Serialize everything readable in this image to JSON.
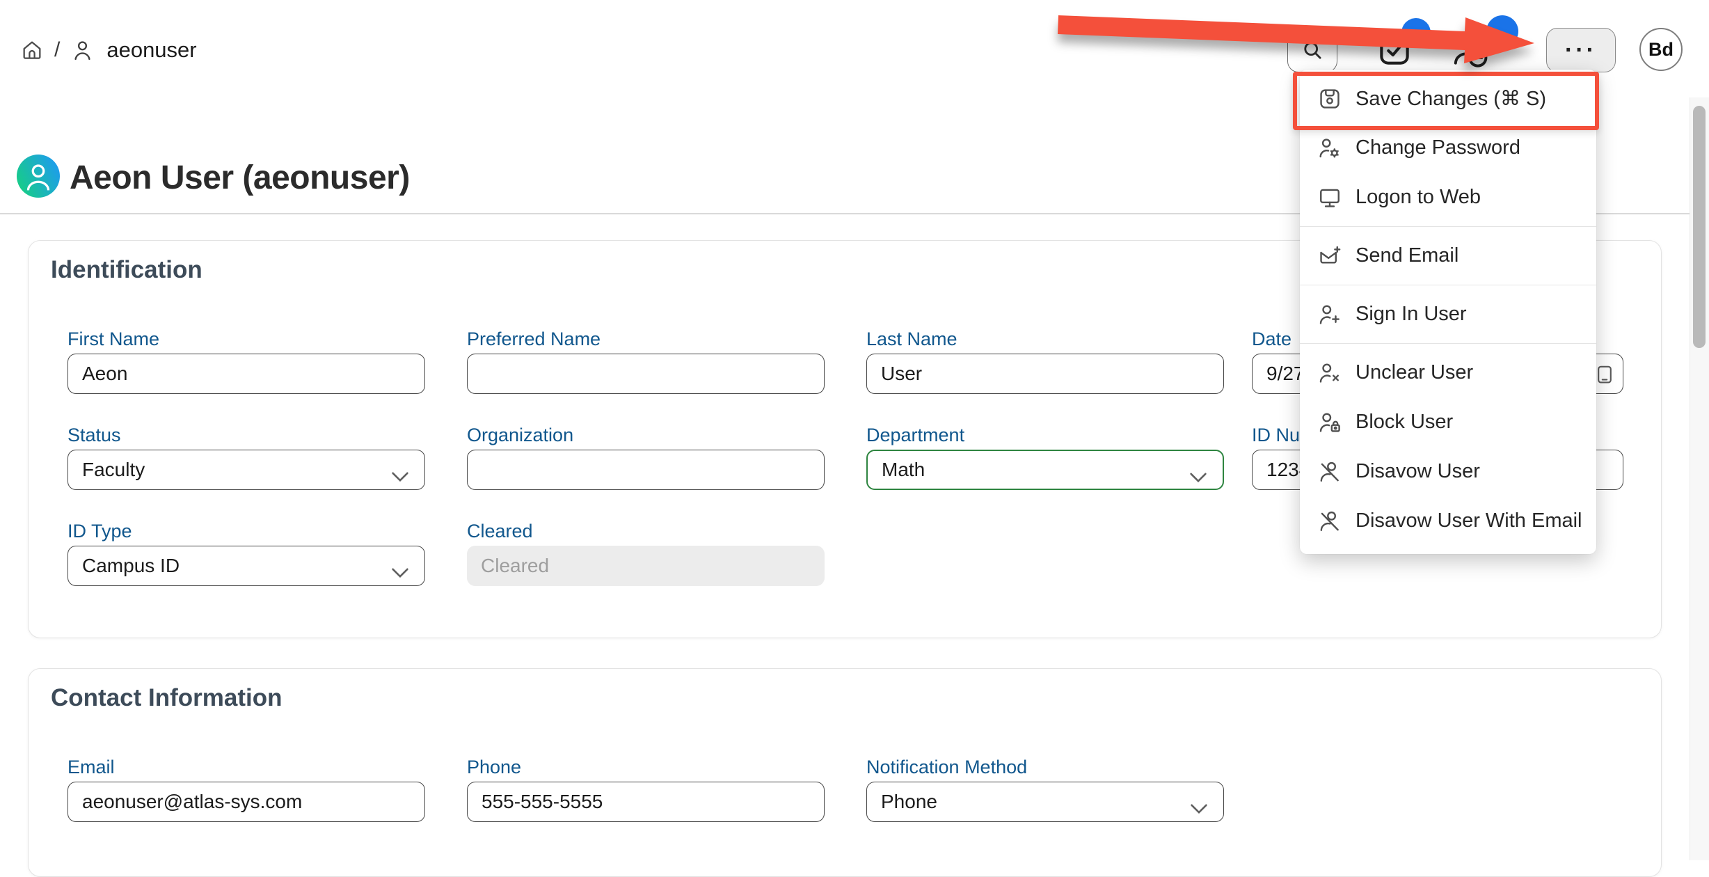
{
  "topbar": {
    "breadcrumb": {
      "separator": "/",
      "items": [
        {
          "icon": "home-icon",
          "label": ""
        },
        {
          "icon": "person-icon",
          "label": "aeonuser"
        }
      ]
    },
    "search_button": {
      "icon": "search-icon"
    },
    "status_buttons": [
      {
        "icon": "clipboard-check-icon",
        "has_badge": true
      },
      {
        "icon": "person-clock-icon",
        "has_badge": true
      }
    ],
    "more_button": {
      "label": "···"
    },
    "user_avatar": {
      "initials": "Bd"
    }
  },
  "page": {
    "title": "Aeon User (aeonuser)",
    "avatar_icon": "user-gradient-avatar-icon"
  },
  "action_menu": {
    "items": [
      {
        "label": "Save Changes (⌘ S)",
        "icon": "save-icon",
        "highlighted": true
      },
      {
        "label": "Change Password",
        "icon": "person-gear-icon"
      },
      {
        "label": "Logon to Web",
        "icon": "monitor-icon",
        "divider_after": true
      },
      {
        "label": "Send Email",
        "icon": "mail-plus-icon",
        "divider_after": true
      },
      {
        "label": "Sign In User",
        "icon": "person-plus-icon",
        "divider_after": true
      },
      {
        "label": "Unclear User",
        "icon": "person-x-icon"
      },
      {
        "label": "Block User",
        "icon": "person-lock-icon"
      },
      {
        "label": "Disavow User",
        "icon": "person-slash-icon"
      },
      {
        "label": "Disavow User With Email",
        "icon": "person-slash-icon"
      }
    ]
  },
  "sections": [
    {
      "title": "Identification",
      "fields": [
        {
          "label": "First Name",
          "value": "Aeon",
          "type": "text",
          "col": 0,
          "row": 0
        },
        {
          "label": "Preferred Name",
          "value": "",
          "type": "text",
          "col": 1,
          "row": 0
        },
        {
          "label": "Last Name",
          "value": "User",
          "type": "text",
          "col": 2,
          "row": 0
        },
        {
          "label": "Date",
          "value": "9/27",
          "type": "text",
          "col": 3,
          "row": 0,
          "trailing_icon": "calendar-icon"
        },
        {
          "label": "Status",
          "value": "Faculty",
          "type": "select",
          "col": 0,
          "row": 1
        },
        {
          "label": "Organization",
          "value": "",
          "type": "text",
          "col": 1,
          "row": 1
        },
        {
          "label": "Department",
          "value": "Math",
          "type": "select",
          "col": 2,
          "row": 1,
          "modified": true
        },
        {
          "label": "ID Number",
          "value": "1234",
          "type": "text",
          "col": 3,
          "row": 1
        },
        {
          "label": "ID Type",
          "value": "Campus ID",
          "type": "select",
          "col": 0,
          "row": 2
        },
        {
          "label": "Cleared",
          "value": "",
          "placeholder": "Cleared",
          "type": "disabled",
          "col": 1,
          "row": 2
        }
      ]
    },
    {
      "title": "Contact Information",
      "fields": [
        {
          "label": "Email",
          "value": "aeonuser@atlas-sys.com",
          "type": "text",
          "col": 0,
          "row": 0
        },
        {
          "label": "Phone",
          "value": "555-555-5555",
          "type": "text",
          "col": 1,
          "row": 0
        },
        {
          "label": "Notification Method",
          "value": "Phone",
          "type": "select",
          "col": 2,
          "row": 0
        }
      ]
    }
  ],
  "annotations": {
    "arrow_color": "#F4503B",
    "highlight_color": "#F4503B",
    "highlighted_item": "Save Changes (⌘ S)"
  },
  "colors": {
    "label_blue": "#11578D",
    "modified_green": "#2E8540",
    "badge_blue": "#1A73E8",
    "avatar_gradient_start": "#17CE85",
    "avatar_gradient_end": "#1E9BEF"
  }
}
